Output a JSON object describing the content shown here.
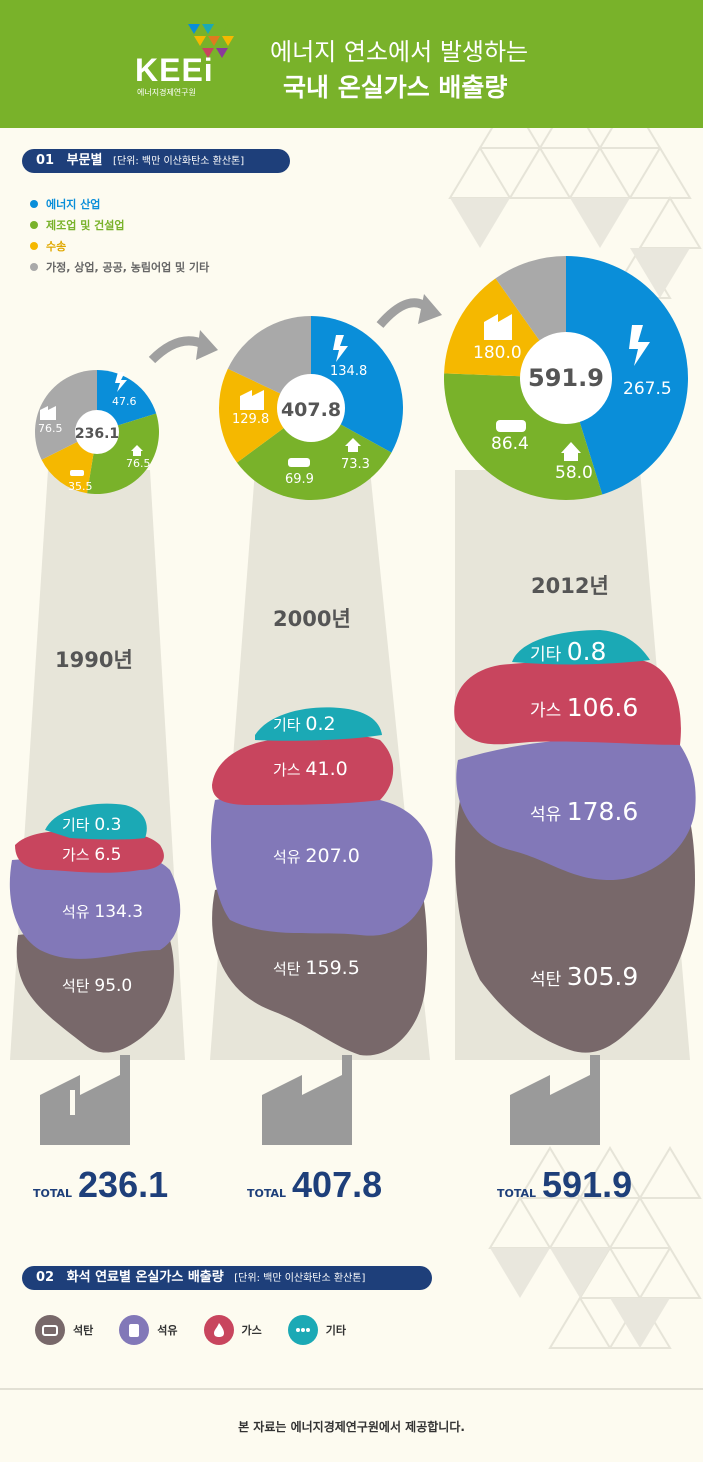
{
  "header": {
    "logo_text": "KEEi",
    "logo_sub": "에너지경제연구원",
    "title_line1": "에너지 연소에서 발생하는",
    "title_line2": "국내 온실가스 배출량"
  },
  "section1": {
    "num": "01",
    "title": "부문별",
    "unit": "[단위: 백만 이산화탄소 환산톤]"
  },
  "section2": {
    "num": "02",
    "title": "화석 연료별 온실가스 배출량",
    "unit": "[단위: 백만 이산화탄소 환산톤]"
  },
  "sector_legend": [
    {
      "label": "에너지 산업",
      "color": "#0a8ed9"
    },
    {
      "label": "제조업 및 건설업",
      "color": "#79b22a"
    },
    {
      "label": "수송",
      "color": "#f5b800"
    },
    {
      "label": "가정, 상업, 공공, 농림어업 및 기타",
      "color": "#a9a9a9"
    }
  ],
  "fuel_legend": [
    {
      "label": "석탄",
      "icon": "coal-icon",
      "color": "#78686a"
    },
    {
      "label": "석유",
      "icon": "oil-icon",
      "color": "#8278b8"
    },
    {
      "label": "가스",
      "icon": "flame-icon",
      "color": "#c8455e"
    },
    {
      "label": "기타",
      "icon": "dots-icon",
      "color": "#1ba9b5"
    }
  ],
  "years": [
    {
      "year": "1990년",
      "total_label": "TOTAL",
      "total": "236.1",
      "center": "236.1",
      "sectors": {
        "energy": "47.6",
        "manufacturing": "76.5",
        "transport": "35.5",
        "residential": "76.5"
      },
      "fuels": {
        "other_label": "기타",
        "other": "0.3",
        "gas_label": "가스",
        "gas": "6.5",
        "oil_label": "석유",
        "oil": "134.3",
        "coal_label": "석탄",
        "coal": "95.0"
      }
    },
    {
      "year": "2000년",
      "total_label": "TOTAL",
      "total": "407.8",
      "center": "407.8",
      "sectors": {
        "energy": "134.8",
        "manufacturing": "129.8",
        "transport": "69.9",
        "residential": "73.3"
      },
      "fuels": {
        "other_label": "기타",
        "other": "0.2",
        "gas_label": "가스",
        "gas": "41.0",
        "oil_label": "석유",
        "oil": "207.0",
        "coal_label": "석탄",
        "coal": "159.5"
      }
    },
    {
      "year": "2012년",
      "total_label": "TOTAL",
      "total": "591.9",
      "center": "591.9",
      "sectors": {
        "energy": "267.5",
        "manufacturing": "180.0",
        "transport": "86.4",
        "residential": "58.0"
      },
      "fuels": {
        "other_label": "기타",
        "other": "0.8",
        "gas_label": "가스",
        "gas": "106.6",
        "oil_label": "석유",
        "oil": "178.6",
        "coal_label": "석탄",
        "coal": "305.9"
      }
    }
  ],
  "footer": "본 자료는 에너지경제연구원에서 제공합니다.",
  "chart_data": [
    {
      "type": "pie",
      "title": "1990년",
      "categories": [
        "에너지 산업",
        "제조업 및 건설업",
        "수송",
        "가정, 상업, 공공, 농림어업 및 기타"
      ],
      "values": [
        47.6,
        76.5,
        35.5,
        76.5
      ]
    },
    {
      "type": "pie",
      "title": "2000년",
      "categories": [
        "에너지 산업",
        "제조업 및 건설업",
        "수송",
        "가정, 상업, 공공, 농림어업 및 기타"
      ],
      "values": [
        134.8,
        129.8,
        69.9,
        73.3
      ]
    },
    {
      "type": "pie",
      "title": "2012년",
      "categories": [
        "에너지 산업",
        "제조업 및 건설업",
        "수송",
        "가정, 상업, 공공, 농림어업 및 기타"
      ],
      "values": [
        267.5,
        180.0,
        86.4,
        58.0
      ]
    },
    {
      "type": "area",
      "categories": [
        "1990년",
        "2000년",
        "2012년"
      ],
      "series": [
        {
          "name": "석탄",
          "values": [
            95.0,
            159.5,
            305.9
          ]
        },
        {
          "name": "석유",
          "values": [
            134.3,
            207.0,
            178.6
          ]
        },
        {
          "name": "가스",
          "values": [
            6.5,
            41.0,
            106.6
          ]
        },
        {
          "name": "기타",
          "values": [
            0.3,
            0.2,
            0.8
          ]
        }
      ]
    }
  ]
}
